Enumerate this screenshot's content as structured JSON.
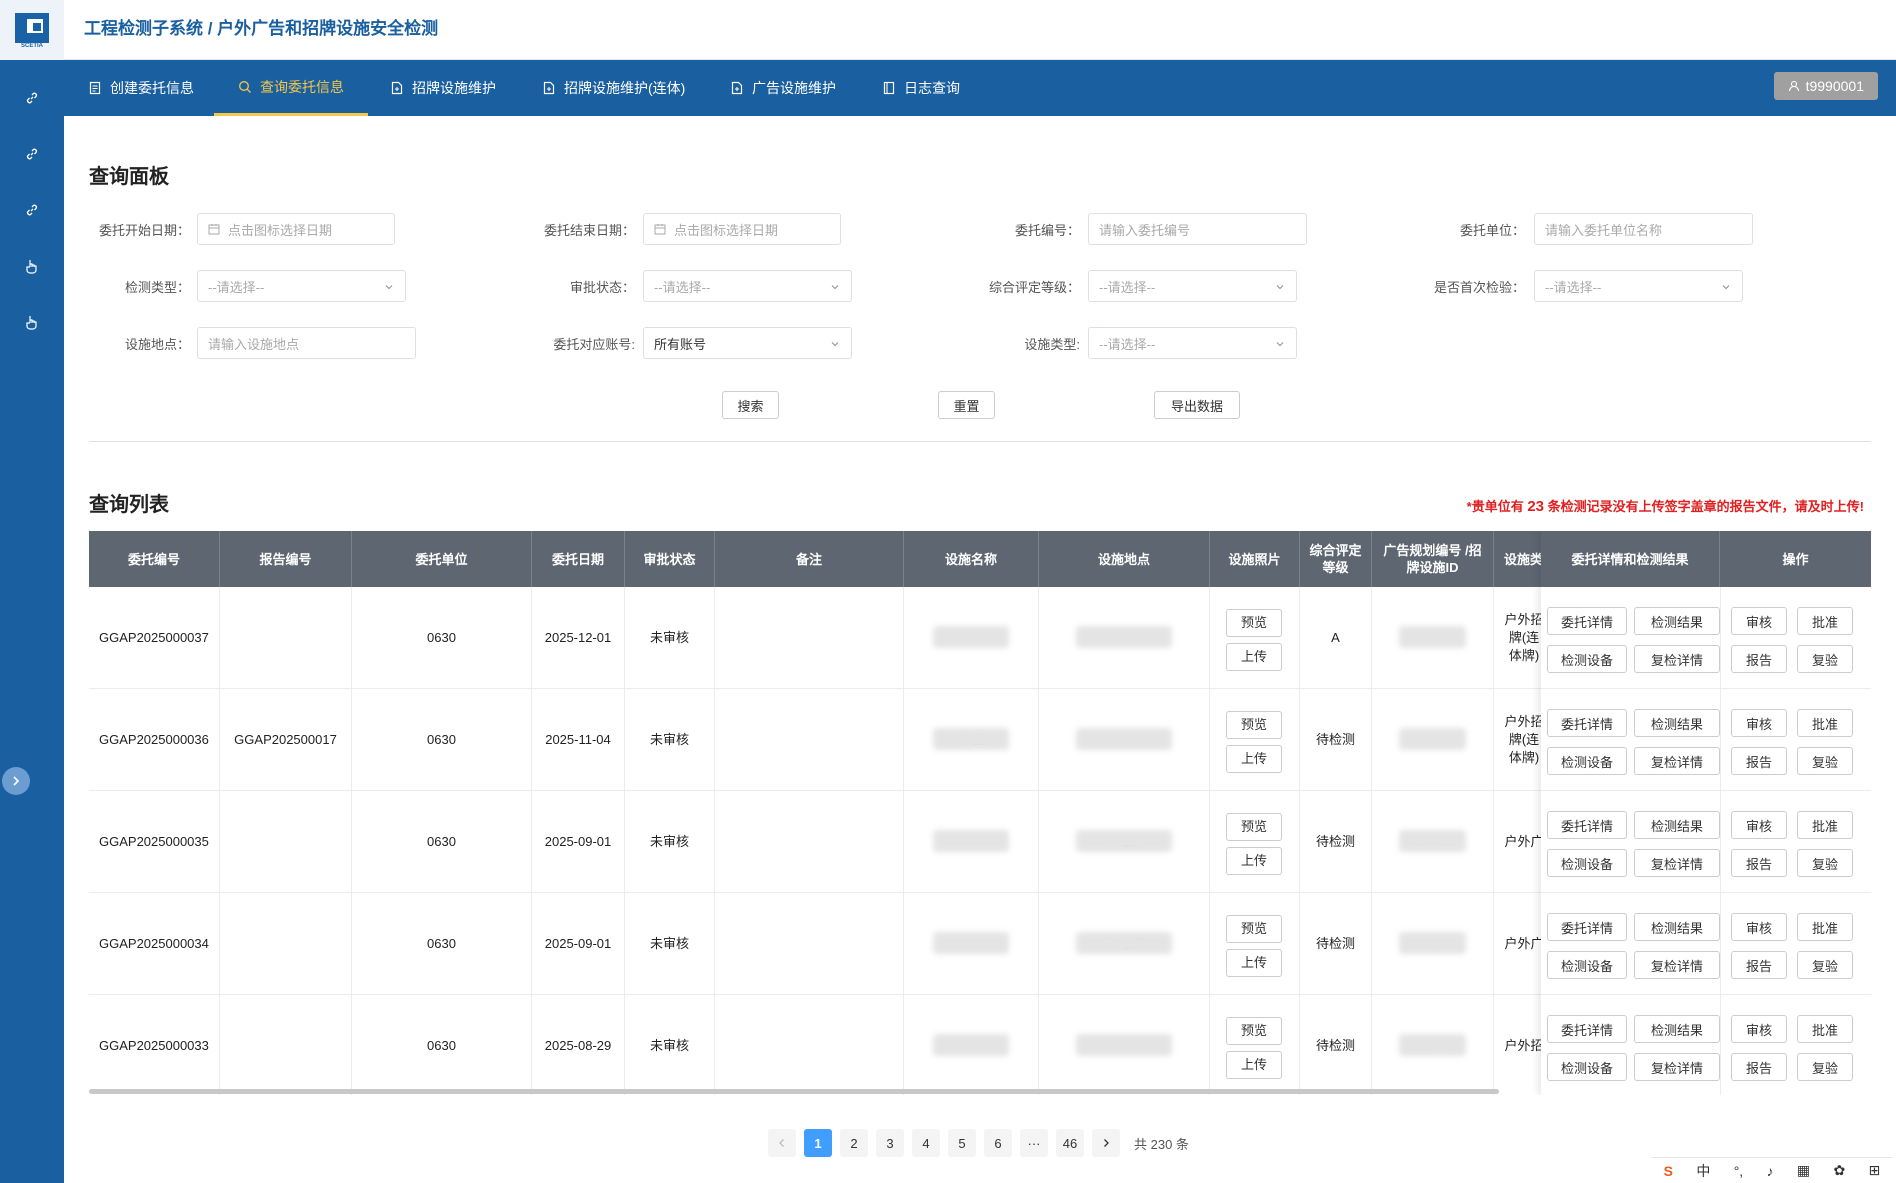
{
  "header": {
    "title": "工程检测子系统 / 户外广告和招牌设施安全检测",
    "logo_text": "SCETIA"
  },
  "nav": {
    "items": [
      {
        "label": "创建委托信息",
        "icon": "document-icon"
      },
      {
        "label": "查询委托信息",
        "icon": "search-icon"
      },
      {
        "label": "招牌设施维护",
        "icon": "file-plus-icon"
      },
      {
        "label": "招牌设施维护(连体)",
        "icon": "file-plus-icon"
      },
      {
        "label": "广告设施维护",
        "icon": "file-plus-icon"
      },
      {
        "label": "日志查询",
        "icon": "book-icon"
      }
    ],
    "user": "t9990001"
  },
  "query_panel": {
    "title": "查询面板",
    "fields": {
      "start_date": {
        "label": "委托开始日期：",
        "placeholder": "点击图标选择日期"
      },
      "end_date": {
        "label": "委托结束日期：",
        "placeholder": "点击图标选择日期"
      },
      "entrust_no": {
        "label": "委托编号：",
        "placeholder": "请输入委托编号"
      },
      "entrust_unit": {
        "label": "委托单位：",
        "placeholder": "请输入委托单位名称"
      },
      "test_type": {
        "label": "检测类型：",
        "placeholder": "--请选择--"
      },
      "audit_status": {
        "label": "审批状态：",
        "placeholder": "--请选择--"
      },
      "grade": {
        "label": "综合评定等级：",
        "placeholder": "--请选择--"
      },
      "first_test": {
        "label": "是否首次检验：",
        "placeholder": "--请选择--"
      },
      "location": {
        "label": "设施地点：",
        "placeholder": "请输入设施地点"
      },
      "account": {
        "label": "委托对应账号:",
        "value": "所有账号"
      },
      "facility_type": {
        "label": "设施类型:",
        "placeholder": "--请选择--"
      }
    },
    "buttons": {
      "search": "搜索",
      "reset": "重置",
      "export": "导出数据"
    }
  },
  "list": {
    "title": "查询列表",
    "warning_prefix": "*贵单位有",
    "warning_count": "23",
    "warning_suffix": "条检测记录没有上传签字盖章的报告文件，请及时上传!",
    "columns": [
      "委托编号",
      "报告编号",
      "委托单位",
      "委托日期",
      "审批状态",
      "备注",
      "设施名称",
      "设施地点",
      "设施照片",
      "综合评定等级",
      "广告规划编号 /招牌设施ID",
      "设施类",
      "委托详情和检测结果",
      "操作"
    ],
    "btn_labels": {
      "preview": "预览",
      "upload": "上传",
      "detail": "委托详情",
      "result": "检测结果",
      "device": "检测设备",
      "recheck_detail": "复检详情",
      "audit": "审核",
      "approve": "批准",
      "report": "报告",
      "recheck": "复验"
    },
    "rows": [
      {
        "entrust_no": "GGAP2025000037",
        "report_no": "",
        "unit": "0630",
        "date": "2025-12-01",
        "status": "未审核",
        "note": "",
        "name": "",
        "location": "",
        "grade": "A",
        "plan_no": "",
        "type": "户外招牌(连体牌)"
      },
      {
        "entrust_no": "GGAP2025000036",
        "report_no": "GGAP202500017",
        "unit": "0630",
        "date": "2025-11-04",
        "status": "未审核",
        "note": "",
        "name": "中 主",
        "location": "",
        "grade": "待检测",
        "plan_no": "",
        "type": "户外招牌(连体牌)"
      },
      {
        "entrust_no": "GGAP2025000035",
        "report_no": "",
        "unit": "0630",
        "date": "2025-09-01",
        "status": "未审核",
        "note": "",
        "name": "",
        "location": "场 老镇",
        "grade": "待检测",
        "plan_no": "090 SC",
        "type": "户外广"
      },
      {
        "entrust_no": "GGAP2025000034",
        "report_no": "",
        "unit": "0630",
        "date": "2025-09-01",
        "status": "未审核",
        "note": "",
        "name": "",
        "location": "场 老镇",
        "grade": "待检测",
        "plan_no": "090 SC",
        "type": "户外广"
      },
      {
        "entrust_no": "GGAP2025000033",
        "report_no": "",
        "unit": "0630",
        "date": "2025-08-29",
        "status": "未审核",
        "note": "",
        "name": "",
        "location": "",
        "grade": "待检测",
        "plan_no": "B20 45",
        "type": "户外招"
      }
    ]
  },
  "pagination": {
    "pages": [
      "1",
      "2",
      "3",
      "4",
      "5",
      "6",
      "···",
      "46"
    ],
    "current": "1",
    "total": "共 230 条"
  },
  "ime": {
    "lang": "中"
  }
}
